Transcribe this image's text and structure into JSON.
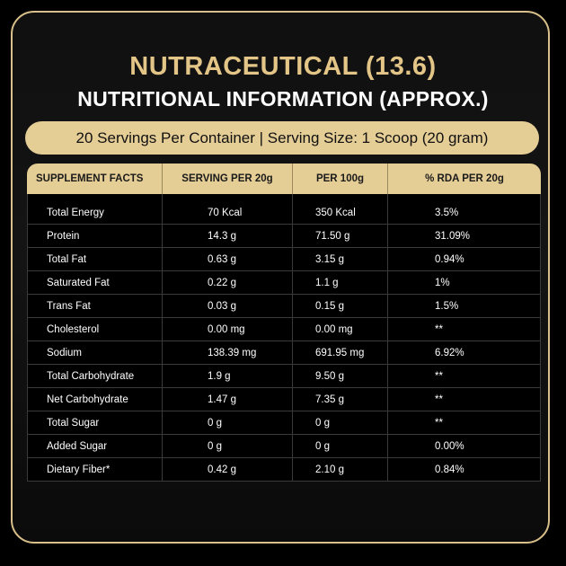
{
  "header": {
    "title": "NUTRACEUTICAL (13.6)",
    "subtitle": "NUTRITIONAL INFORMATION (APPROX.)",
    "servings": "20 Servings Per Container | Serving Size: 1 Scoop (20 gram)"
  },
  "table": {
    "headers": [
      "SUPPLEMENT FACTS",
      "SERVING PER 20g",
      "PER 100g",
      "% RDA PER 20g"
    ],
    "rows": [
      [
        "Total Energy",
        "70 Kcal",
        "350 Kcal",
        "3.5%"
      ],
      [
        "Protein",
        "14.3 g",
        "71.50 g",
        "31.09%"
      ],
      [
        "Total Fat",
        "0.63 g",
        "3.15 g",
        "0.94%"
      ],
      [
        "Saturated Fat",
        "0.22 g",
        "1.1 g",
        "1%"
      ],
      [
        "Trans Fat",
        "0.03 g",
        "0.15 g",
        "1.5%"
      ],
      [
        "Cholesterol",
        "0.00 mg",
        "0.00 mg",
        "**"
      ],
      [
        "Sodium",
        "138.39 mg",
        "691.95 mg",
        "6.92%"
      ],
      [
        "Total Carbohydrate",
        "1.9 g",
        "9.50 g",
        "**"
      ],
      [
        "Net Carbohydrate",
        "1.47 g",
        "7.35 g",
        "**"
      ],
      [
        "Total Sugar",
        "0 g",
        "0 g",
        "**"
      ],
      [
        "Added Sugar",
        "0 g",
        "0 g",
        "0.00%"
      ],
      [
        "Dietary Fiber*",
        "0.42 g",
        "2.10 g",
        "0.84%"
      ]
    ]
  },
  "colors": {
    "gold": "#e5cd96",
    "title_gold": "#e2c587",
    "background": "#000000",
    "text": "#ffffff"
  }
}
